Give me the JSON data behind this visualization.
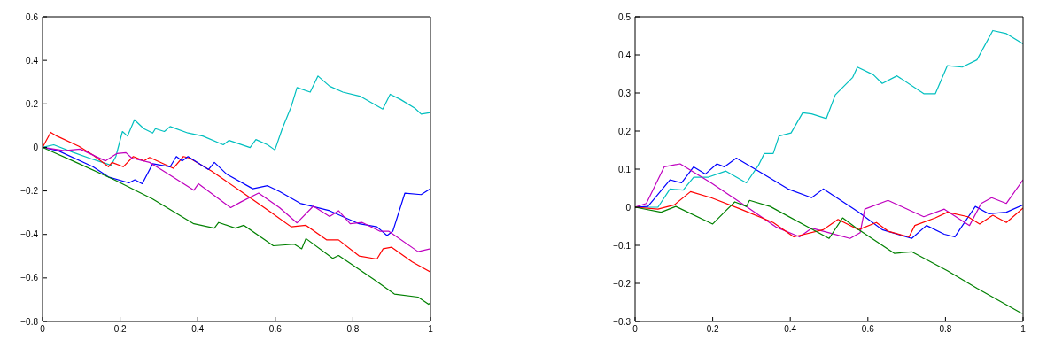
{
  "chart_data": [
    {
      "type": "line",
      "xlim": [
        0,
        1
      ],
      "xticks": [
        0,
        0.2,
        0.4,
        0.6,
        0.8,
        1
      ],
      "ylim": [
        -0.8,
        0.6
      ],
      "yticks": [
        {
          "value": -0.8,
          "label": "−0.8"
        },
        {
          "value": -0.6,
          "label": "−0.6"
        },
        {
          "value": -0.4,
          "label": "−0.4"
        },
        {
          "value": -0.2,
          "label": "−0.2"
        },
        0,
        0.2,
        0.4,
        0.6
      ],
      "grid": false,
      "legend": false,
      "marker": "none",
      "line_style": "solid",
      "series": [
        {
          "color": "#00bfbf",
          "x": [
            0,
            0.029,
            0.078,
            0.13,
            0.177,
            0.189,
            0.206,
            0.219,
            0.237,
            0.261,
            0.284,
            0.291,
            0.314,
            0.329,
            0.375,
            0.413,
            0.466,
            0.481,
            0.535,
            0.55,
            0.58,
            0.599,
            0.618,
            0.641,
            0.656,
            0.69,
            0.71,
            0.74,
            0.774,
            0.82,
            0.877,
            0.896,
            0.922,
            0.96,
            0.976,
            1
          ],
          "values": [
            0,
            0.012,
            -0.022,
            -0.055,
            -0.082,
            -0.042,
            0.073,
            0.052,
            0.127,
            0.086,
            0.066,
            0.086,
            0.073,
            0.096,
            0.066,
            0.052,
            0.012,
            0.032,
            -0.001,
            0.036,
            0.012,
            -0.012,
            0.086,
            0.187,
            0.275,
            0.254,
            0.328,
            0.281,
            0.254,
            0.234,
            0.176,
            0.244,
            0.221,
            0.18,
            0.153,
            0.16
          ]
        },
        {
          "color": "#ff0000",
          "x": [
            0,
            0.021,
            0.037,
            0.094,
            0.13,
            0.17,
            0.179,
            0.208,
            0.234,
            0.261,
            0.276,
            0.337,
            0.363,
            0.379,
            0.436,
            0.512,
            0.588,
            0.641,
            0.679,
            0.732,
            0.763,
            0.816,
            0.862,
            0.878,
            0.9,
            0.953,
            1
          ],
          "values": [
            0,
            0.069,
            0.052,
            0.005,
            -0.035,
            -0.089,
            -0.069,
            -0.089,
            -0.042,
            -0.062,
            -0.046,
            -0.096,
            -0.042,
            -0.049,
            -0.109,
            -0.203,
            -0.297,
            -0.365,
            -0.358,
            -0.425,
            -0.425,
            -0.499,
            -0.513,
            -0.466,
            -0.459,
            -0.526,
            -0.573
          ]
        },
        {
          "color": "#0000ff",
          "x": [
            0,
            0.04,
            0.13,
            0.17,
            0.223,
            0.238,
            0.257,
            0.284,
            0.329,
            0.345,
            0.36,
            0.375,
            0.428,
            0.443,
            0.474,
            0.542,
            0.58,
            0.611,
            0.664,
            0.74,
            0.816,
            0.862,
            0.888,
            0.903,
            0.934,
            0.976,
            1
          ],
          "values": [
            0,
            -0.015,
            -0.089,
            -0.136,
            -0.163,
            -0.149,
            -0.167,
            -0.075,
            -0.089,
            -0.042,
            -0.062,
            -0.042,
            -0.102,
            -0.069,
            -0.122,
            -0.19,
            -0.176,
            -0.203,
            -0.257,
            -0.291,
            -0.351,
            -0.365,
            -0.405,
            -0.385,
            -0.21,
            -0.217,
            -0.19
          ]
        },
        {
          "color": "#bf00bf",
          "x": [
            0,
            0.056,
            0.097,
            0.162,
            0.192,
            0.215,
            0.23,
            0.276,
            0.306,
            0.39,
            0.402,
            0.485,
            0.512,
            0.557,
            0.611,
            0.656,
            0.698,
            0.74,
            0.763,
            0.793,
            0.824,
            0.869,
            0.892,
            0.968,
            1
          ],
          "values": [
            0,
            -0.015,
            -0.008,
            -0.062,
            -0.028,
            -0.024,
            -0.049,
            -0.069,
            -0.102,
            -0.197,
            -0.167,
            -0.277,
            -0.25,
            -0.21,
            -0.277,
            -0.347,
            -0.27,
            -0.318,
            -0.291,
            -0.351,
            -0.345,
            -0.385,
            -0.385,
            -0.479,
            -0.466
          ]
        },
        {
          "color": "#008000",
          "x": [
            0,
            0.078,
            0.185,
            0.284,
            0.39,
            0.443,
            0.454,
            0.497,
            0.519,
            0.595,
            0.649,
            0.668,
            0.679,
            0.748,
            0.763,
            0.854,
            0.907,
            0.968,
            0.995,
            1
          ],
          "values": [
            0,
            -0.062,
            -0.149,
            -0.237,
            -0.351,
            -0.371,
            -0.345,
            -0.371,
            -0.358,
            -0.452,
            -0.445,
            -0.466,
            -0.419,
            -0.51,
            -0.497,
            -0.607,
            -0.674,
            -0.688,
            -0.721,
            -0.715
          ]
        }
      ]
    },
    {
      "type": "line",
      "xlim": [
        0,
        1
      ],
      "xticks": [
        0,
        0.2,
        0.4,
        0.6,
        0.8,
        1
      ],
      "ylim": [
        -0.3,
        0.5
      ],
      "yticks": [
        {
          "value": -0.3,
          "label": "−0.3"
        },
        {
          "value": -0.2,
          "label": "−0.2"
        },
        {
          "value": -0.1,
          "label": "−0.1"
        },
        0,
        0.1,
        0.2,
        0.3,
        0.4,
        0.5
      ],
      "grid": false,
      "legend": false,
      "marker": "none",
      "line_style": "solid",
      "series": [
        {
          "color": "#00bfbf",
          "x": [
            0,
            0.059,
            0.09,
            0.124,
            0.151,
            0.189,
            0.234,
            0.287,
            0.318,
            0.333,
            0.356,
            0.371,
            0.402,
            0.432,
            0.455,
            0.493,
            0.516,
            0.561,
            0.573,
            0.614,
            0.637,
            0.675,
            0.744,
            0.774,
            0.805,
            0.843,
            0.881,
            0.922,
            0.957,
            1
          ],
          "values": [
            0,
            0,
            0.048,
            0.045,
            0.079,
            0.079,
            0.095,
            0.064,
            0.11,
            0.141,
            0.141,
            0.187,
            0.195,
            0.248,
            0.245,
            0.233,
            0.295,
            0.341,
            0.368,
            0.348,
            0.325,
            0.345,
            0.298,
            0.298,
            0.372,
            0.368,
            0.387,
            0.464,
            0.456,
            0.429
          ]
        },
        {
          "color": "#0000ff",
          "x": [
            0,
            0.033,
            0.09,
            0.12,
            0.151,
            0.181,
            0.211,
            0.23,
            0.261,
            0.318,
            0.394,
            0.455,
            0.485,
            0.576,
            0.637,
            0.713,
            0.751,
            0.797,
            0.824,
            0.877,
            0.911,
            0.957,
            1
          ],
          "values": [
            0,
            0.002,
            0.072,
            0.064,
            0.106,
            0.087,
            0.114,
            0.106,
            0.129,
            0.095,
            0.048,
            0.025,
            0.048,
            -0.013,
            -0.059,
            -0.082,
            -0.048,
            -0.071,
            -0.078,
            0.002,
            -0.017,
            -0.013,
            0.006
          ]
        },
        {
          "color": "#bf00bf",
          "x": [
            0,
            0.029,
            0.075,
            0.116,
            0.196,
            0.287,
            0.363,
            0.424,
            0.455,
            0.5,
            0.554,
            0.58,
            0.592,
            0.652,
            0.744,
            0.797,
            0.862,
            0.892,
            0.919,
            0.957,
            1
          ],
          "values": [
            0,
            0.01,
            0.106,
            0.114,
            0.064,
            0.002,
            -0.052,
            -0.078,
            -0.055,
            -0.067,
            -0.082,
            -0.067,
            -0.005,
            0.018,
            -0.025,
            -0.005,
            -0.048,
            0.01,
            0.025,
            0.01,
            0.072
          ]
        },
        {
          "color": "#ff0000",
          "x": [
            0,
            0.059,
            0.101,
            0.143,
            0.196,
            0.272,
            0.356,
            0.409,
            0.485,
            0.523,
            0.576,
            0.622,
            0.652,
            0.706,
            0.721,
            0.774,
            0.805,
            0.858,
            0.888,
            0.922,
            0.957,
            1
          ],
          "values": [
            0,
            -0.005,
            0.006,
            0.041,
            0.025,
            -0.005,
            -0.04,
            -0.078,
            -0.059,
            -0.032,
            -0.059,
            -0.04,
            -0.063,
            -0.078,
            -0.048,
            -0.028,
            -0.013,
            -0.025,
            -0.044,
            -0.021,
            -0.04,
            -0.002
          ]
        },
        {
          "color": "#008000",
          "x": [
            0,
            0.067,
            0.105,
            0.2,
            0.23,
            0.257,
            0.287,
            0.295,
            0.348,
            0.5,
            0.535,
            0.576,
            0.668,
            0.713,
            0.805,
            0.881,
            0.995,
            1
          ],
          "values": [
            0,
            -0.013,
            0.002,
            -0.044,
            -0.013,
            0.014,
            0.002,
            0.018,
            0.002,
            -0.082,
            -0.028,
            -0.059,
            -0.121,
            -0.117,
            -0.167,
            -0.213,
            -0.278,
            -0.278
          ]
        }
      ]
    }
  ]
}
